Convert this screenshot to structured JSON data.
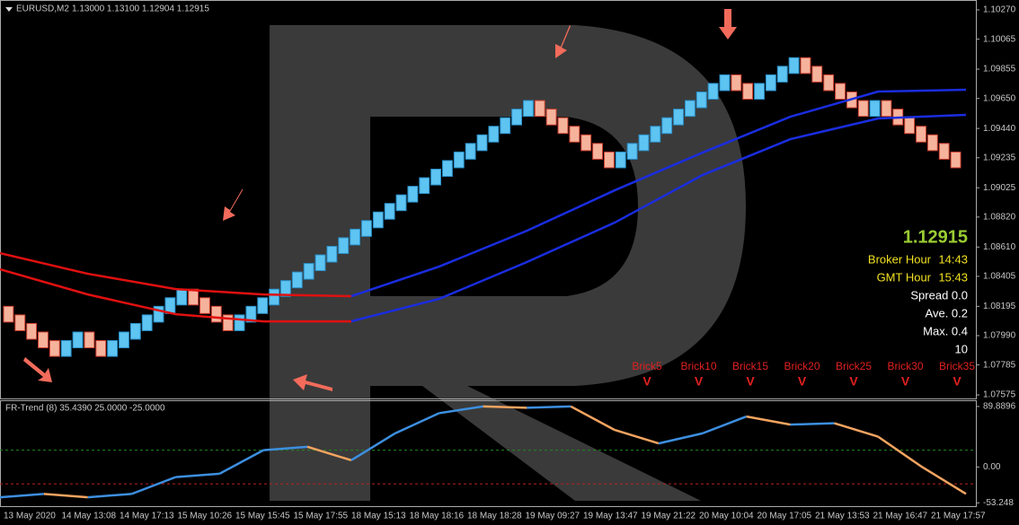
{
  "header": {
    "symbol": "EURUSD,M2",
    "quote": "1.13000 1.13100 1.12904 1.12915"
  },
  "chart_data": {
    "type": "renko",
    "ylim": [
      1.07544,
      1.10339
    ],
    "yticks": [
      {
        "value": 1.1027,
        "label": "1.10270"
      },
      {
        "value": 1.10065,
        "label": "1.10065"
      },
      {
        "value": 1.09855,
        "label": "1.09855"
      },
      {
        "value": 1.0965,
        "label": "1.09650"
      },
      {
        "value": 1.0944,
        "label": "1.09440"
      },
      {
        "value": 1.09235,
        "label": "1.09235"
      },
      {
        "value": 1.09025,
        "label": "1.09025"
      },
      {
        "value": 1.0882,
        "label": "1.08820"
      },
      {
        "value": 1.0861,
        "label": "1.08610"
      },
      {
        "value": 1.08405,
        "label": "1.08405"
      },
      {
        "value": 1.08195,
        "label": "1.08195"
      },
      {
        "value": 1.0799,
        "label": "1.07990"
      },
      {
        "value": 1.07785,
        "label": "1.07785"
      },
      {
        "value": 1.07575,
        "label": "1.07575"
      }
    ],
    "open": 1.0817,
    "closes": [
      1.0811,
      1.0805,
      1.0799,
      1.0793,
      1.0787,
      1.0793,
      1.0799,
      1.0793,
      1.0787,
      1.0793,
      1.0799,
      1.0805,
      1.0811,
      1.0817,
      1.0823,
      1.0829,
      1.0823,
      1.0817,
      1.0811,
      1.0805,
      1.0811,
      1.0817,
      1.0823,
      1.0829,
      1.0835,
      1.0841,
      1.0847,
      1.0853,
      1.0859,
      1.0865,
      1.0871,
      1.0877,
      1.0883,
      1.0889,
      1.0895,
      1.0901,
      1.0907,
      1.0913,
      1.0919,
      1.0925,
      1.0931,
      1.0937,
      1.0943,
      1.0949,
      1.0955,
      1.0961,
      1.0955,
      1.0949,
      1.0943,
      1.0937,
      1.0931,
      1.0925,
      1.0919,
      1.0925,
      1.0931,
      1.0937,
      1.0943,
      1.0949,
      1.0955,
      1.0961,
      1.0967,
      1.0973,
      1.0979,
      1.0973,
      1.0967,
      1.0973,
      1.0979,
      1.0985,
      1.0991,
      1.0985,
      1.0979,
      1.0973,
      1.0967,
      1.0961,
      1.0955,
      1.0961,
      1.0955,
      1.0949,
      1.0943,
      1.0937,
      1.0931,
      1.0925,
      1.0919
    ],
    "colors": {
      "up": "#5ec4f2",
      "down": "#f6b39c"
    },
    "lines": [
      {
        "color": "#e01010",
        "values": [
          1.08567,
          1.08423,
          1.08316,
          1.08278,
          1.08266,
          null,
          null,
          null,
          null,
          null,
          null,
          null
        ]
      },
      {
        "color": "#1a2de0",
        "values": [
          null,
          null,
          null,
          null,
          1.08266,
          1.08473,
          1.08724,
          1.09007,
          1.09271,
          1.09522,
          1.09698,
          1.09711
        ]
      },
      {
        "color": "#e01010",
        "values": [
          1.08454,
          1.08278,
          1.0814,
          1.0809,
          1.0809,
          null,
          null,
          null,
          null,
          null,
          null,
          null
        ]
      },
      {
        "color": "#1a2de0",
        "values": [
          null,
          null,
          null,
          null,
          1.0809,
          1.08247,
          1.08505,
          1.08781,
          1.09114,
          1.09365,
          1.0951,
          1.09535
        ]
      }
    ],
    "time_labels": [
      "13 May 2020",
      "14 May 13:08",
      "14 May 17:13",
      "15 May 10:26",
      "15 May 15:45",
      "15 May 17:55",
      "18 May 15:13",
      "18 May 18:16",
      "18 May 18:28",
      "19 May 09:27",
      "19 May 13:47",
      "19 May 21:22",
      "20 May 10:04",
      "20 May 17:05",
      "21 May 13:53",
      "21 May 16:47",
      "21 May 17:57"
    ]
  },
  "info": {
    "price": "1.12915",
    "broker_label": "Broker Hour",
    "broker": "14:43",
    "gmt_label": "GMT Hour",
    "gmt": "15:43",
    "spread": "Spread 0.0",
    "ave": "Ave. 0.2",
    "max": "Max. 0.4",
    "count": "10"
  },
  "brick_labels": [
    {
      "label": "Brick5",
      "mark": "V"
    },
    {
      "label": "Brick10",
      "mark": "V"
    },
    {
      "label": "Brick15",
      "mark": "V"
    },
    {
      "label": "Brick20",
      "mark": "V"
    },
    {
      "label": "Brick25",
      "mark": "V"
    },
    {
      "label": "Brick30",
      "mark": "V"
    },
    {
      "label": "Brick35",
      "mark": "V"
    }
  ],
  "indicator": {
    "type": "line",
    "title": "FR-Trend (8) 35.4390 25.0000 -25.0000",
    "ylim": [
      -59.5,
      97.8
    ],
    "yticks": [
      89.8896,
      {
        "value": 0,
        "label": "0.00"
      },
      -53.248
    ],
    "levels": [
      25,
      -25
    ],
    "level_colors": [
      "#1f8a1f",
      "#c02020"
    ],
    "colors": {
      "up": "#3d8fe0",
      "down": "#f4a460"
    },
    "values": [
      -45,
      -40,
      -45,
      -40,
      -15,
      -10,
      25,
      30,
      10,
      50,
      80,
      90,
      88,
      90,
      55,
      35,
      50,
      75,
      63,
      65,
      45,
      0,
      -40
    ]
  }
}
